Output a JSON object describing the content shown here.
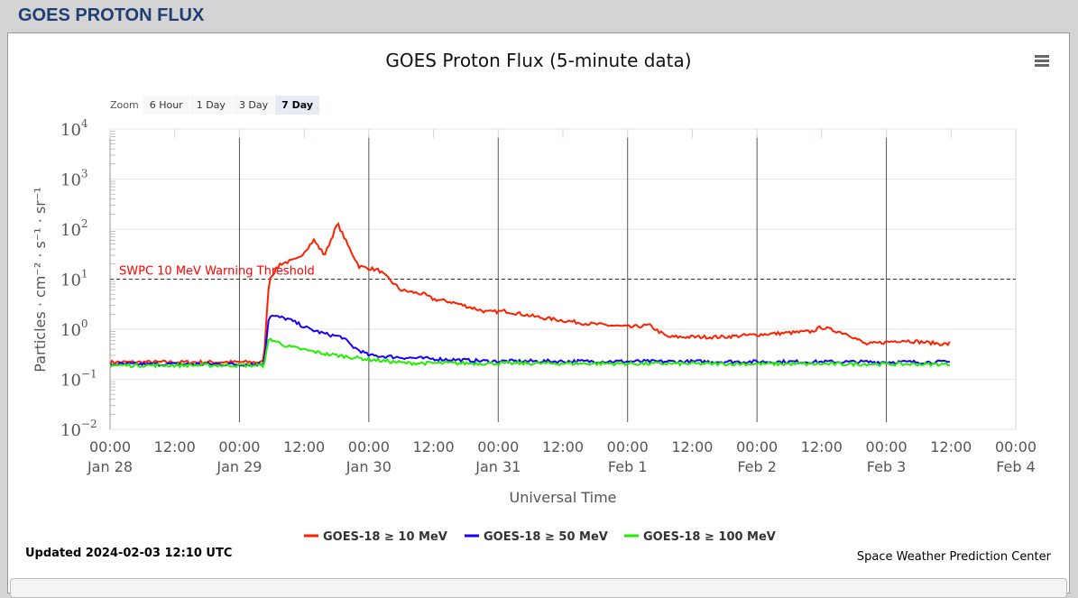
{
  "page_title": "GOES PROTON FLUX",
  "zoom": {
    "label": "Zoom",
    "buttons": [
      "6 Hour",
      "1 Day",
      "3 Day",
      "7 Day"
    ],
    "selected": "7 Day"
  },
  "updated": "Updated 2024-02-03 12:10 UTC",
  "credit": "Space Weather Prediction Center",
  "chart_data": {
    "type": "line",
    "title": "GOES Proton Flux (5-minute data)",
    "xlabel": "Universal Time",
    "ylabel": "Particles · cm⁻² · s⁻¹ · sr⁻¹",
    "yscale": "log",
    "ylim": [
      0.01,
      10000
    ],
    "x_unit": "hours since 2024-01-28 00:00 UTC",
    "xlim": [
      0,
      168
    ],
    "yticks": [
      {
        "base": "10",
        "exp": "4",
        "v": 10000
      },
      {
        "base": "10",
        "exp": "3",
        "v": 1000
      },
      {
        "base": "10",
        "exp": "2",
        "v": 100
      },
      {
        "base": "10",
        "exp": "1",
        "v": 10
      },
      {
        "base": "10",
        "exp": "0",
        "v": 1
      },
      {
        "base": "10",
        "exp": "−1",
        "v": 0.1
      },
      {
        "base": "10",
        "exp": "−2",
        "v": 0.01
      }
    ],
    "xticks": [
      {
        "h": 0,
        "time": "00:00",
        "date": "Jan 28"
      },
      {
        "h": 12,
        "time": "12:00",
        "date": ""
      },
      {
        "h": 24,
        "time": "00:00",
        "date": "Jan 29"
      },
      {
        "h": 36,
        "time": "12:00",
        "date": ""
      },
      {
        "h": 48,
        "time": "00:00",
        "date": "Jan 30"
      },
      {
        "h": 60,
        "time": "12:00",
        "date": ""
      },
      {
        "h": 72,
        "time": "00:00",
        "date": "Jan 31"
      },
      {
        "h": 84,
        "time": "12:00",
        "date": ""
      },
      {
        "h": 96,
        "time": "00:00",
        "date": "Feb 1"
      },
      {
        "h": 108,
        "time": "12:00",
        "date": ""
      },
      {
        "h": 120,
        "time": "00:00",
        "date": "Feb 2"
      },
      {
        "h": 132,
        "time": "12:00",
        "date": ""
      },
      {
        "h": 144,
        "time": "00:00",
        "date": "Feb 3"
      },
      {
        "h": 156,
        "time": "12:00",
        "date": ""
      },
      {
        "h": 168,
        "time": "00:00",
        "date": "Feb 4"
      }
    ],
    "threshold": {
      "value": 10,
      "label": "SWPC 10 MeV Warning Threshold",
      "color": "#ff0000"
    },
    "legend_position": "bottom-center",
    "series": [
      {
        "name": "GOES-18 ≥ 10 MeV",
        "color": "#ff2000",
        "points": [
          [
            0,
            0.22
          ],
          [
            28.5,
            0.22
          ],
          [
            29.5,
            10
          ],
          [
            31.5,
            20
          ],
          [
            34.8,
            25
          ],
          [
            37.8,
            60
          ],
          [
            39.8,
            30
          ],
          [
            42.2,
            130
          ],
          [
            44,
            50
          ],
          [
            46.2,
            18
          ],
          [
            49.9,
            15
          ],
          [
            54,
            6
          ],
          [
            58.2,
            5
          ],
          [
            59.9,
            4
          ],
          [
            63.3,
            3.5
          ],
          [
            70,
            2.2
          ],
          [
            73.3,
            2.3
          ],
          [
            80,
            1.7
          ],
          [
            88.4,
            1.3
          ],
          [
            96.7,
            1.1
          ],
          [
            100,
            1.2
          ],
          [
            103.4,
            0.7
          ],
          [
            113.5,
            0.7
          ],
          [
            121.8,
            0.8
          ],
          [
            130.2,
            0.9
          ],
          [
            131.9,
            1.1
          ],
          [
            136.9,
            0.8
          ],
          [
            140.2,
            0.5
          ],
          [
            147,
            0.6
          ],
          [
            155.3,
            0.5
          ],
          [
            156,
            0.55
          ]
        ]
      },
      {
        "name": "GOES-18 ≥ 50 MeV",
        "color": "#1a00ff",
        "points": [
          [
            0,
            0.2
          ],
          [
            28.5,
            0.2
          ],
          [
            29.5,
            1.9
          ],
          [
            33,
            1.6
          ],
          [
            37,
            1.0
          ],
          [
            40,
            0.8
          ],
          [
            43,
            0.7
          ],
          [
            45,
            0.45
          ],
          [
            48,
            0.3
          ],
          [
            55,
            0.27
          ],
          [
            70,
            0.23
          ],
          [
            156,
            0.22
          ]
        ]
      },
      {
        "name": "GOES-18 ≥ 100 MeV",
        "color": "#22ee00",
        "points": [
          [
            0,
            0.19
          ],
          [
            28.5,
            0.19
          ],
          [
            29.5,
            0.65
          ],
          [
            33,
            0.45
          ],
          [
            40,
            0.32
          ],
          [
            48,
            0.25
          ],
          [
            55,
            0.21
          ],
          [
            156,
            0.2
          ]
        ]
      }
    ]
  }
}
